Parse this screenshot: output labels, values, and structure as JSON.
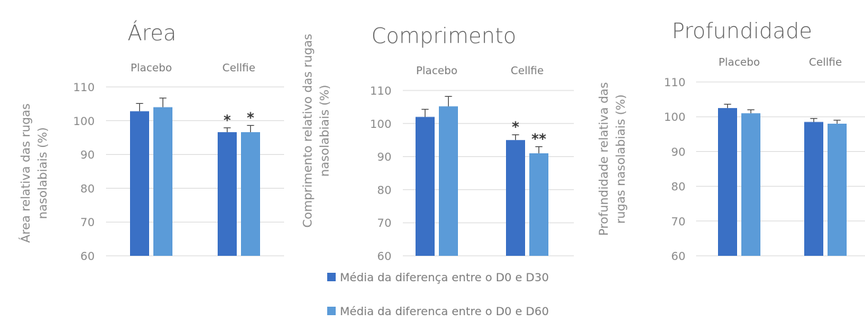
{
  "colors": {
    "d30": "#3a70c5",
    "d60": "#5b9bd8",
    "grid": "#d9d9d9",
    "text": "#7a7a7a",
    "error": "#4a4a4a"
  },
  "legend": [
    {
      "label": "Média da diferença entre o D0 e D30",
      "color": "#3a70c5"
    },
    {
      "label": "Média da diferenca entre o D0 e D60",
      "color": "#5b9bd8"
    }
  ],
  "chart_data": [
    {
      "type": "bar",
      "title": "Área",
      "ylabel": [
        "Área relativa das rugas",
        "nasolabiais (%)"
      ],
      "categories": [
        "Placebo",
        "Cellfie"
      ],
      "ylim": [
        60,
        110
      ],
      "yticks": [
        "60",
        "70",
        "80",
        "90",
        "100",
        "110"
      ],
      "grid": true,
      "series": [
        {
          "name": "Média da diferença entre o D0 e D30",
          "values": [
            102.8,
            96.6
          ],
          "errors": [
            2.3,
            1.3
          ]
        },
        {
          "name": "Média da diferenca entre o D0 e D60",
          "values": [
            104.0,
            96.6
          ],
          "errors": [
            2.7,
            2.0
          ]
        }
      ],
      "annotations": [
        [
          "",
          ""
        ],
        [
          "*",
          "*"
        ]
      ]
    },
    {
      "type": "bar",
      "title": "Comprimento",
      "ylabel": [
        "Comprimento relativo das rugas",
        "nasolabiais (%)"
      ],
      "categories": [
        "Placebo",
        "Cellfie"
      ],
      "ylim": [
        60,
        110
      ],
      "yticks": [
        "60",
        "70",
        "80",
        "90",
        "100",
        "110"
      ],
      "grid": true,
      "series": [
        {
          "name": "Média da diferença entre o D0 e D30",
          "values": [
            102.0,
            95.0
          ],
          "errors": [
            2.3,
            1.6
          ]
        },
        {
          "name": "Média da diferenca entre o D0 e D60",
          "values": [
            105.2,
            91.0
          ],
          "errors": [
            3.0,
            2.0
          ]
        }
      ],
      "annotations": [
        [
          "",
          ""
        ],
        [
          "*",
          "**"
        ]
      ]
    },
    {
      "type": "bar",
      "title": "Profundidade",
      "ylabel": [
        "Profundidade relativa das",
        "rugas nasolabiais (%)"
      ],
      "categories": [
        "Placebo",
        "Cellfie"
      ],
      "ylim": [
        60,
        110
      ],
      "yticks": [
        "60",
        "70",
        "80",
        "90",
        "100",
        "110"
      ],
      "grid": true,
      "series": [
        {
          "name": "Média da diferença entre o D0 e D30",
          "values": [
            102.5,
            98.5
          ],
          "errors": [
            1.1,
            1.0
          ]
        },
        {
          "name": "Média da diferenca entre o D0 e D60",
          "values": [
            101.0,
            98.0
          ],
          "errors": [
            1.0,
            1.0
          ]
        }
      ],
      "annotations": [
        [
          "",
          ""
        ],
        [
          "",
          ""
        ]
      ]
    }
  ]
}
